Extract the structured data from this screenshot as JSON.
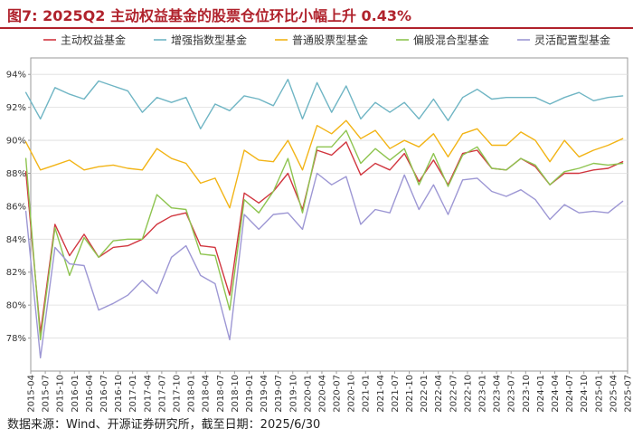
{
  "header": {
    "title": "图7:  2025Q2 主动权益基金的股票仓位环比小幅上升 0.43%"
  },
  "source": "数据来源：Wind、开源证券研究所，截至日期：2025/6/30",
  "chart_data": {
    "type": "line",
    "title": "图7:  2025Q2 主动权益基金的股票仓位环比小幅上升 0.43%",
    "xlabel": "",
    "ylabel": "",
    "ylim": [
      76,
      95
    ],
    "yticks": [
      "78%",
      "80%",
      "82%",
      "84%",
      "86%",
      "88%",
      "90%",
      "92%",
      "94%"
    ],
    "ytick_values": [
      78,
      80,
      82,
      84,
      86,
      88,
      90,
      92,
      94
    ],
    "legend_position": "top",
    "categories": [
      "2015-04",
      "2015-07",
      "2015-10",
      "2016-01",
      "2016-04",
      "2016-07",
      "2016-10",
      "2017-01",
      "2017-04",
      "2017-07",
      "2017-10",
      "2018-01",
      "2018-04",
      "2018-07",
      "2018-10",
      "2019-01",
      "2019-04",
      "2019-07",
      "2019-10",
      "2020-01",
      "2020-04",
      "2020-07",
      "2020-10",
      "2021-01",
      "2021-04",
      "2021-07",
      "2021-10",
      "2022-01",
      "2022-04",
      "2022-07",
      "2022-10",
      "2023-01",
      "2023-04",
      "2023-07",
      "2023-10",
      "2024-01",
      "2024-04",
      "2024-07",
      "2024-10",
      "2025-01",
      "2025-04",
      "2025-07"
    ],
    "x": [
      "2015-03",
      "2015-06",
      "2015-09",
      "2015-12",
      "2016-03",
      "2016-06",
      "2016-09",
      "2016-12",
      "2017-03",
      "2017-06",
      "2017-09",
      "2017-12",
      "2018-03",
      "2018-06",
      "2018-09",
      "2018-12",
      "2019-03",
      "2019-06",
      "2019-09",
      "2019-12",
      "2020-03",
      "2020-06",
      "2020-09",
      "2020-12",
      "2021-03",
      "2021-06",
      "2021-09",
      "2021-12",
      "2022-03",
      "2022-06",
      "2022-09",
      "2022-12",
      "2023-03",
      "2023-06",
      "2023-09",
      "2023-12",
      "2024-03",
      "2024-06",
      "2024-09",
      "2024-12",
      "2025-03",
      "2025-06"
    ],
    "series": [
      {
        "name": "主动权益基金",
        "color": "#d1363f",
        "values": [
          88.1,
          78.3,
          84.9,
          83.0,
          84.3,
          82.9,
          83.5,
          83.6,
          84.0,
          84.9,
          85.4,
          85.6,
          83.6,
          83.5,
          80.6,
          86.8,
          86.2,
          86.9,
          88.0,
          85.8,
          89.4,
          89.1,
          89.9,
          87.9,
          88.6,
          88.2,
          89.2,
          87.5,
          88.8,
          87.3,
          89.2,
          89.4,
          88.3,
          88.2,
          88.9,
          88.4,
          87.3,
          88.0,
          88.0,
          88.2,
          88.3,
          88.7
        ]
      },
      {
        "name": "增强指数型基金",
        "color": "#6fb5c4",
        "values": [
          92.9,
          91.3,
          93.2,
          92.8,
          92.5,
          93.6,
          93.3,
          93.0,
          91.7,
          92.6,
          92.3,
          92.6,
          90.7,
          92.2,
          91.8,
          92.7,
          92.5,
          92.1,
          93.7,
          91.3,
          93.5,
          91.7,
          93.3,
          91.3,
          92.3,
          91.7,
          92.3,
          91.3,
          92.5,
          91.2,
          92.6,
          93.1,
          92.5,
          92.6,
          92.6,
          92.6,
          92.2,
          92.6,
          92.9,
          92.4,
          92.6,
          92.7
        ]
      },
      {
        "name": "普通股票型基金",
        "color": "#f2b416",
        "values": [
          89.9,
          88.2,
          88.5,
          88.8,
          88.2,
          88.4,
          88.5,
          88.3,
          88.2,
          89.5,
          88.9,
          88.6,
          87.4,
          87.7,
          85.9,
          89.4,
          88.8,
          88.7,
          90.0,
          88.2,
          90.9,
          90.4,
          91.2,
          90.1,
          90.6,
          89.5,
          90.0,
          89.6,
          90.4,
          89.0,
          90.4,
          90.7,
          89.7,
          89.7,
          90.5,
          90.0,
          88.7,
          90.0,
          89.0,
          89.4,
          89.7,
          90.1
        ]
      },
      {
        "name": "偏股混合型基金",
        "color": "#8ec450",
        "values": [
          88.9,
          77.9,
          84.7,
          81.8,
          84.1,
          82.9,
          83.9,
          84.0,
          84.0,
          86.7,
          85.9,
          85.8,
          83.1,
          83.0,
          79.7,
          86.4,
          85.6,
          86.9,
          88.9,
          85.6,
          89.6,
          89.6,
          90.6,
          88.6,
          89.5,
          88.8,
          89.5,
          87.3,
          89.2,
          87.2,
          89.1,
          89.6,
          88.3,
          88.2,
          88.9,
          88.5,
          87.3,
          88.1,
          88.3,
          88.6,
          88.5,
          88.6
        ]
      },
      {
        "name": "灵活配置型基金",
        "color": "#9d97d4",
        "values": [
          85.7,
          76.8,
          83.5,
          82.5,
          82.4,
          79.7,
          80.1,
          80.6,
          81.5,
          80.7,
          82.9,
          83.6,
          81.8,
          81.3,
          77.9,
          85.5,
          84.6,
          85.5,
          85.6,
          84.6,
          88.0,
          87.3,
          87.8,
          84.9,
          85.8,
          85.6,
          87.9,
          85.8,
          87.3,
          85.5,
          87.6,
          87.7,
          86.9,
          86.6,
          87.0,
          86.4,
          85.2,
          86.1,
          85.6,
          85.7,
          85.6,
          86.3
        ]
      }
    ]
  }
}
